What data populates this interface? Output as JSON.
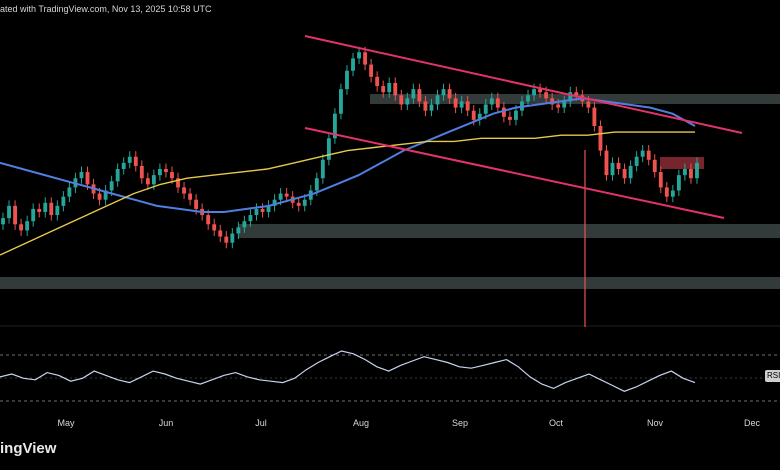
{
  "header": {
    "caption": "ated with TradingView.com, Nov 13, 2025 10:58 UTC"
  },
  "brand": {
    "name": "ingView"
  },
  "rsi_label": "RSI",
  "colors": {
    "background": "#000000",
    "bull_candle": "#26a69a",
    "bear_candle": "#ef5350",
    "trend_channel": "#e5336a",
    "ma_fast": "#4f7fe0",
    "ma_slow": "#e6c94c",
    "zone": "#8fa7a7",
    "resistance_box": "#a83440",
    "rsi_line": "#c7d3f0"
  },
  "chart_data": [
    {
      "type": "candlestick",
      "x_axis": {
        "ticks": [
          "May",
          "Jun",
          "Jul",
          "Aug",
          "Sep",
          "Oct",
          "Nov",
          "Dec"
        ]
      },
      "series": [
        {
          "name": "price",
          "values": [
            42,
            46,
            40,
            38,
            41,
            45,
            44,
            47,
            43,
            46,
            49,
            52,
            55,
            57,
            53,
            50,
            48,
            51,
            54,
            58,
            60,
            62,
            59,
            55,
            53,
            56,
            58,
            57,
            55,
            52,
            50,
            48,
            45,
            43,
            40,
            38,
            36,
            34,
            37,
            39,
            41,
            43,
            45,
            44,
            46,
            48,
            50,
            49,
            47,
            46,
            48,
            51,
            55,
            61,
            68,
            76,
            84,
            90,
            94,
            96,
            92,
            88,
            85,
            83,
            86,
            82,
            79,
            81,
            84,
            80,
            77,
            79,
            82,
            84,
            81,
            78,
            80,
            77,
            74,
            76,
            79,
            81,
            78,
            75,
            74,
            77,
            80,
            82,
            84,
            83,
            81,
            79,
            78,
            80,
            83,
            82,
            80,
            78,
            72,
            64,
            56,
            60,
            58,
            55,
            59,
            62,
            64,
            61,
            57,
            52,
            49,
            51,
            56,
            58,
            55,
            60
          ]
        },
        {
          "name": "moving_average_1",
          "values": [
            60,
            58,
            56,
            54,
            52,
            50,
            48,
            46,
            45,
            44,
            44,
            45,
            46,
            48,
            50,
            53,
            56,
            60,
            64,
            67,
            70,
            73,
            76,
            78,
            79,
            80,
            81,
            80,
            79,
            78,
            76,
            72
          ]
        },
        {
          "name": "moving_average_2",
          "values": [
            30,
            34,
            38,
            42,
            46,
            50,
            53,
            55,
            56,
            57,
            58,
            60,
            62,
            64,
            65,
            66,
            67,
            67,
            68,
            68,
            68,
            69,
            69,
            70,
            70,
            70,
            70
          ]
        },
        {
          "name": "RSI",
          "values": [
            48,
            50,
            47,
            46,
            51,
            49,
            45,
            47,
            52,
            49,
            46,
            44,
            48,
            52,
            50,
            47,
            45,
            43,
            46,
            49,
            51,
            48,
            46,
            45,
            44,
            47,
            53,
            58,
            62,
            66,
            64,
            60,
            55,
            52,
            56,
            59,
            62,
            60,
            58,
            55,
            54,
            56,
            58,
            60,
            55,
            48,
            43,
            40,
            44,
            47,
            50,
            46,
            42,
            38,
            41,
            45,
            49,
            52,
            47,
            44
          ]
        }
      ],
      "annotations": [
        "descending channel",
        "support zones",
        "resistance zone",
        "RSI"
      ]
    }
  ]
}
